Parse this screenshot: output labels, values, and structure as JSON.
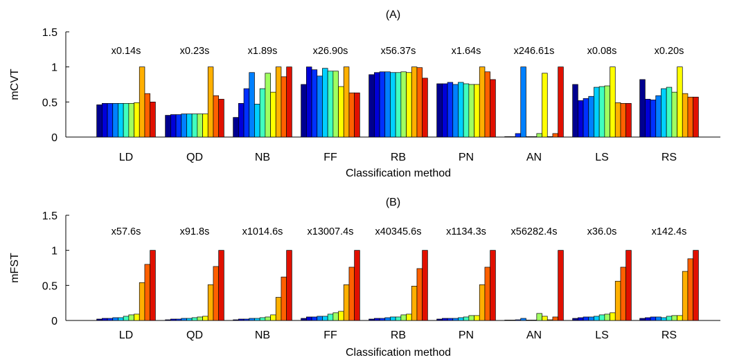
{
  "colors": [
    "#00008f",
    "#0000d8",
    "#0030ff",
    "#0080ff",
    "#00d0ff",
    "#40ffbf",
    "#a0ff60",
    "#ffff00",
    "#ffb000",
    "#ff6000",
    "#e01000",
    "#800000"
  ],
  "chart_data": [
    {
      "type": "bar",
      "title": "(A)",
      "xlabel": "Classification method",
      "ylabel": "mCVT",
      "ylim": [
        0,
        1.5
      ],
      "yticks": [
        "0",
        "0.5",
        "1",
        "1.5"
      ],
      "grid": false,
      "legend": "none",
      "categories": [
        "LD",
        "QD",
        "NB",
        "FF",
        "RB",
        "PN",
        "AN",
        "LS",
        "RS"
      ],
      "annotations": [
        "x0.14s",
        "x0.23s",
        "x1.89s",
        "x26.90s",
        "x56.37s",
        "x1.64s",
        "x246.61s",
        "x0.08s",
        "x0.20s"
      ],
      "values": [
        [
          0.46,
          0.48,
          0.48,
          0.48,
          0.48,
          0.48,
          0.48,
          0.49,
          1.0,
          0.62,
          0.5
        ],
        [
          0.31,
          0.32,
          0.32,
          0.33,
          0.33,
          0.33,
          0.33,
          0.33,
          1.0,
          0.59,
          0.54
        ],
        [
          0.28,
          0.48,
          0.69,
          0.92,
          0.47,
          0.69,
          0.91,
          0.64,
          1.0,
          0.86,
          1.0
        ],
        [
          0.75,
          1.0,
          0.96,
          0.87,
          0.98,
          0.94,
          0.94,
          0.72,
          1.0,
          0.63,
          0.63
        ],
        [
          0.89,
          0.92,
          0.93,
          0.93,
          0.92,
          0.92,
          0.93,
          0.92,
          1.0,
          0.99,
          0.84
        ],
        [
          0.76,
          0.76,
          0.78,
          0.75,
          0.78,
          0.76,
          0.75,
          0.75,
          1.0,
          0.93,
          0.82
        ],
        [
          0.0,
          0.0,
          0.05,
          1.0,
          0.0,
          0.0,
          0.05,
          0.91,
          0.0,
          0.05,
          1.0
        ],
        [
          0.75,
          0.52,
          0.55,
          0.58,
          0.71,
          0.72,
          0.73,
          1.0,
          0.49,
          0.48,
          0.48
        ],
        [
          0.82,
          0.54,
          0.53,
          0.59,
          0.69,
          0.71,
          0.64,
          1.0,
          0.62,
          0.57,
          0.57
        ]
      ]
    },
    {
      "type": "bar",
      "title": "(B)",
      "xlabel": "Classification method",
      "ylabel": "mFST",
      "ylim": [
        0,
        1.5
      ],
      "yticks": [
        "0",
        "0.5",
        "1",
        "1.5"
      ],
      "grid": false,
      "legend": "none",
      "categories": [
        "LD",
        "QD",
        "NB",
        "FF",
        "RB",
        "PN",
        "AN",
        "LS",
        "RS"
      ],
      "annotations": [
        "x57.6s",
        "x91.8s",
        "x1014.6s",
        "x13007.4s",
        "x40345.6s",
        "x1134.3s",
        "x56282.4s",
        "x36.0s",
        "x142.4s"
      ],
      "values": [
        [
          0.02,
          0.03,
          0.03,
          0.04,
          0.04,
          0.06,
          0.08,
          0.09,
          0.54,
          0.8,
          1.0
        ],
        [
          0.01,
          0.02,
          0.02,
          0.03,
          0.03,
          0.04,
          0.05,
          0.06,
          0.51,
          0.77,
          1.0
        ],
        [
          0.01,
          0.02,
          0.02,
          0.03,
          0.03,
          0.04,
          0.05,
          0.08,
          0.33,
          0.62,
          1.0
        ],
        [
          0.03,
          0.05,
          0.05,
          0.06,
          0.06,
          0.09,
          0.11,
          0.13,
          0.51,
          0.76,
          1.0
        ],
        [
          0.02,
          0.03,
          0.03,
          0.04,
          0.05,
          0.05,
          0.08,
          0.09,
          0.49,
          0.74,
          1.0
        ],
        [
          0.02,
          0.03,
          0.03,
          0.03,
          0.04,
          0.05,
          0.07,
          0.07,
          0.51,
          0.76,
          1.0
        ],
        [
          0.0,
          0.0,
          0.01,
          0.03,
          0.0,
          0.0,
          0.1,
          0.06,
          0.01,
          0.05,
          1.0
        ],
        [
          0.03,
          0.04,
          0.05,
          0.05,
          0.06,
          0.08,
          0.09,
          0.11,
          0.56,
          0.76,
          1.0
        ],
        [
          0.03,
          0.04,
          0.05,
          0.05,
          0.04,
          0.06,
          0.07,
          0.07,
          0.7,
          0.88,
          1.0
        ]
      ]
    }
  ]
}
